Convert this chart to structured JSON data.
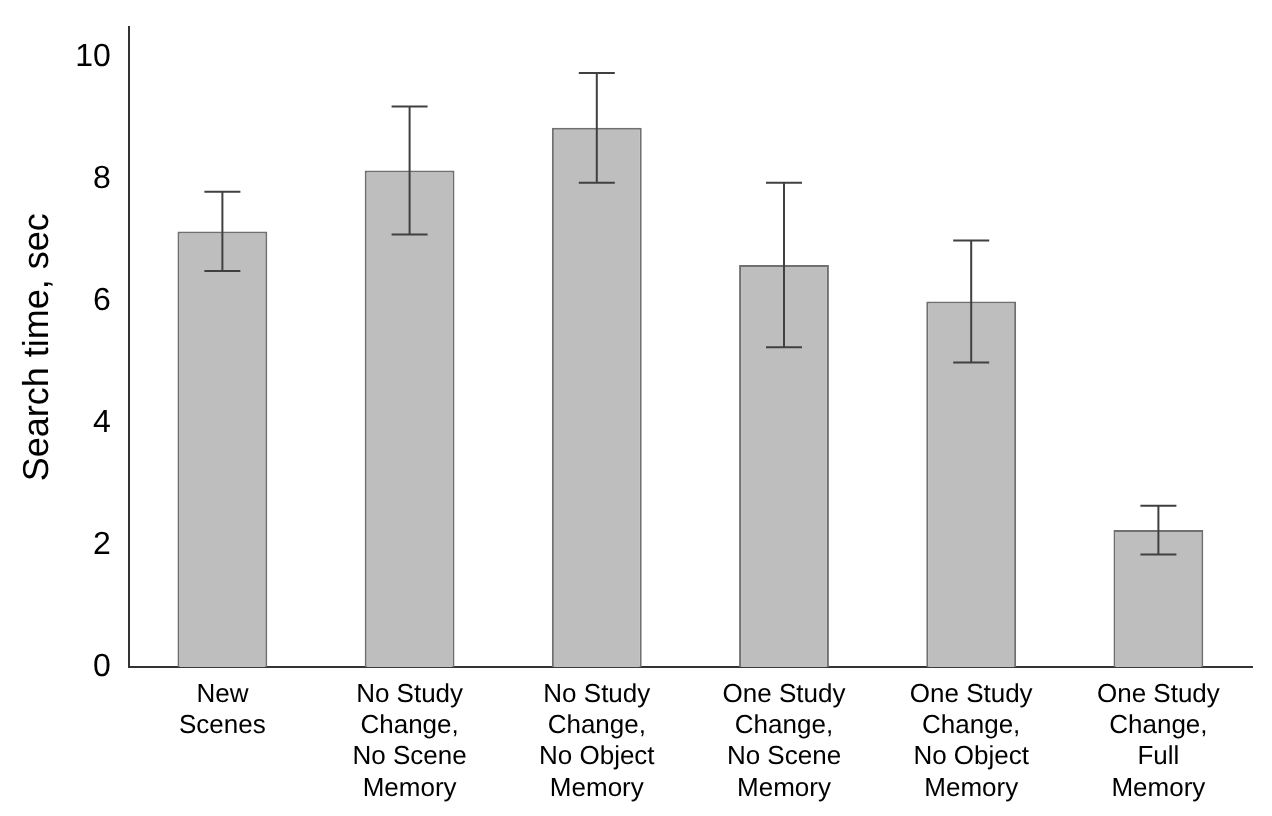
{
  "chart_data": {
    "type": "bar",
    "ylabel": "Search time, sec",
    "categories": [
      "New\nScenes",
      "No Study\nChange,\nNo Scene\nMemory",
      "No Study\nChange,\nNo Object\nMemory",
      "One Study\nChange,\nNo Scene\nMemory",
      "One Study\nChange,\nNo Object\nMemory",
      "One Study\nChange,\nFull\nMemory"
    ],
    "values": [
      7.15,
      8.15,
      8.85,
      6.6,
      6.0,
      2.25
    ],
    "errors": [
      [
        6.5,
        7.8
      ],
      [
        7.1,
        9.2
      ],
      [
        7.95,
        9.75
      ],
      [
        5.25,
        7.95
      ],
      [
        5.0,
        7.0
      ],
      [
        1.85,
        2.65
      ]
    ],
    "color": "#bebebe",
    "ylim": [
      0,
      10.5
    ],
    "yticks": [
      0,
      2,
      4,
      6,
      8,
      10
    ],
    "grid": false,
    "legend": false
  }
}
